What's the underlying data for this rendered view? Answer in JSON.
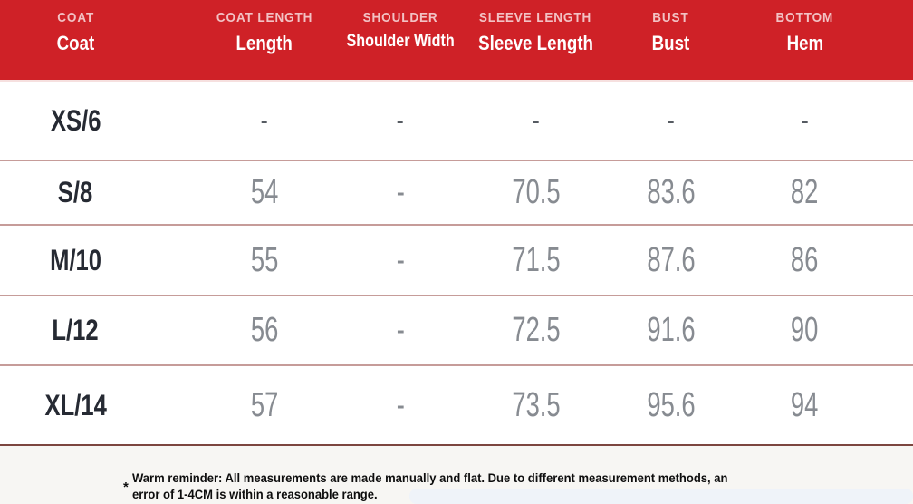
{
  "size_chart": {
    "columns": [
      {
        "group": "COAT",
        "label": "Coat"
      },
      {
        "group": "COAT LENGTH",
        "label": "Length"
      },
      {
        "group": "SHOULDER",
        "label": "Shoulder Width"
      },
      {
        "group": "SLEEVE LENGTH",
        "label": "Sleeve Length"
      },
      {
        "group": "BUST",
        "label": "Bust"
      },
      {
        "group": "BOTTOM",
        "label": "Hem"
      }
    ],
    "rows": [
      {
        "size": "XS/6",
        "values": [
          "-",
          "-",
          "-",
          "-",
          "-"
        ]
      },
      {
        "size": "S/8",
        "values": [
          "54",
          "-",
          "70.5",
          "83.6",
          "82"
        ]
      },
      {
        "size": "M/10",
        "values": [
          "55",
          "-",
          "71.5",
          "87.6",
          "86"
        ]
      },
      {
        "size": "L/12",
        "values": [
          "56",
          "-",
          "72.5",
          "91.6",
          "90"
        ]
      },
      {
        "size": "XL/14",
        "values": [
          "57",
          "-",
          "73.5",
          "95.6",
          "94"
        ]
      }
    ]
  },
  "note": {
    "marker": "*",
    "lines": [
      "Warm reminder: All measurements are made manually and flat. Due to different measurement methods, an",
      "error of 1-4CM is within a reasonable range."
    ]
  },
  "colors": {
    "header_bg": "#cf2127",
    "header_group_text": "#f2c2c4",
    "header_label_text": "#ffffff",
    "size_text": "#262a33",
    "value_text": "#878b91",
    "row_divider": "#c69c99",
    "header_underline": "#f6e0df",
    "bottom_divider": "#7c463f",
    "footer_bg": "#f7f6f3"
  }
}
